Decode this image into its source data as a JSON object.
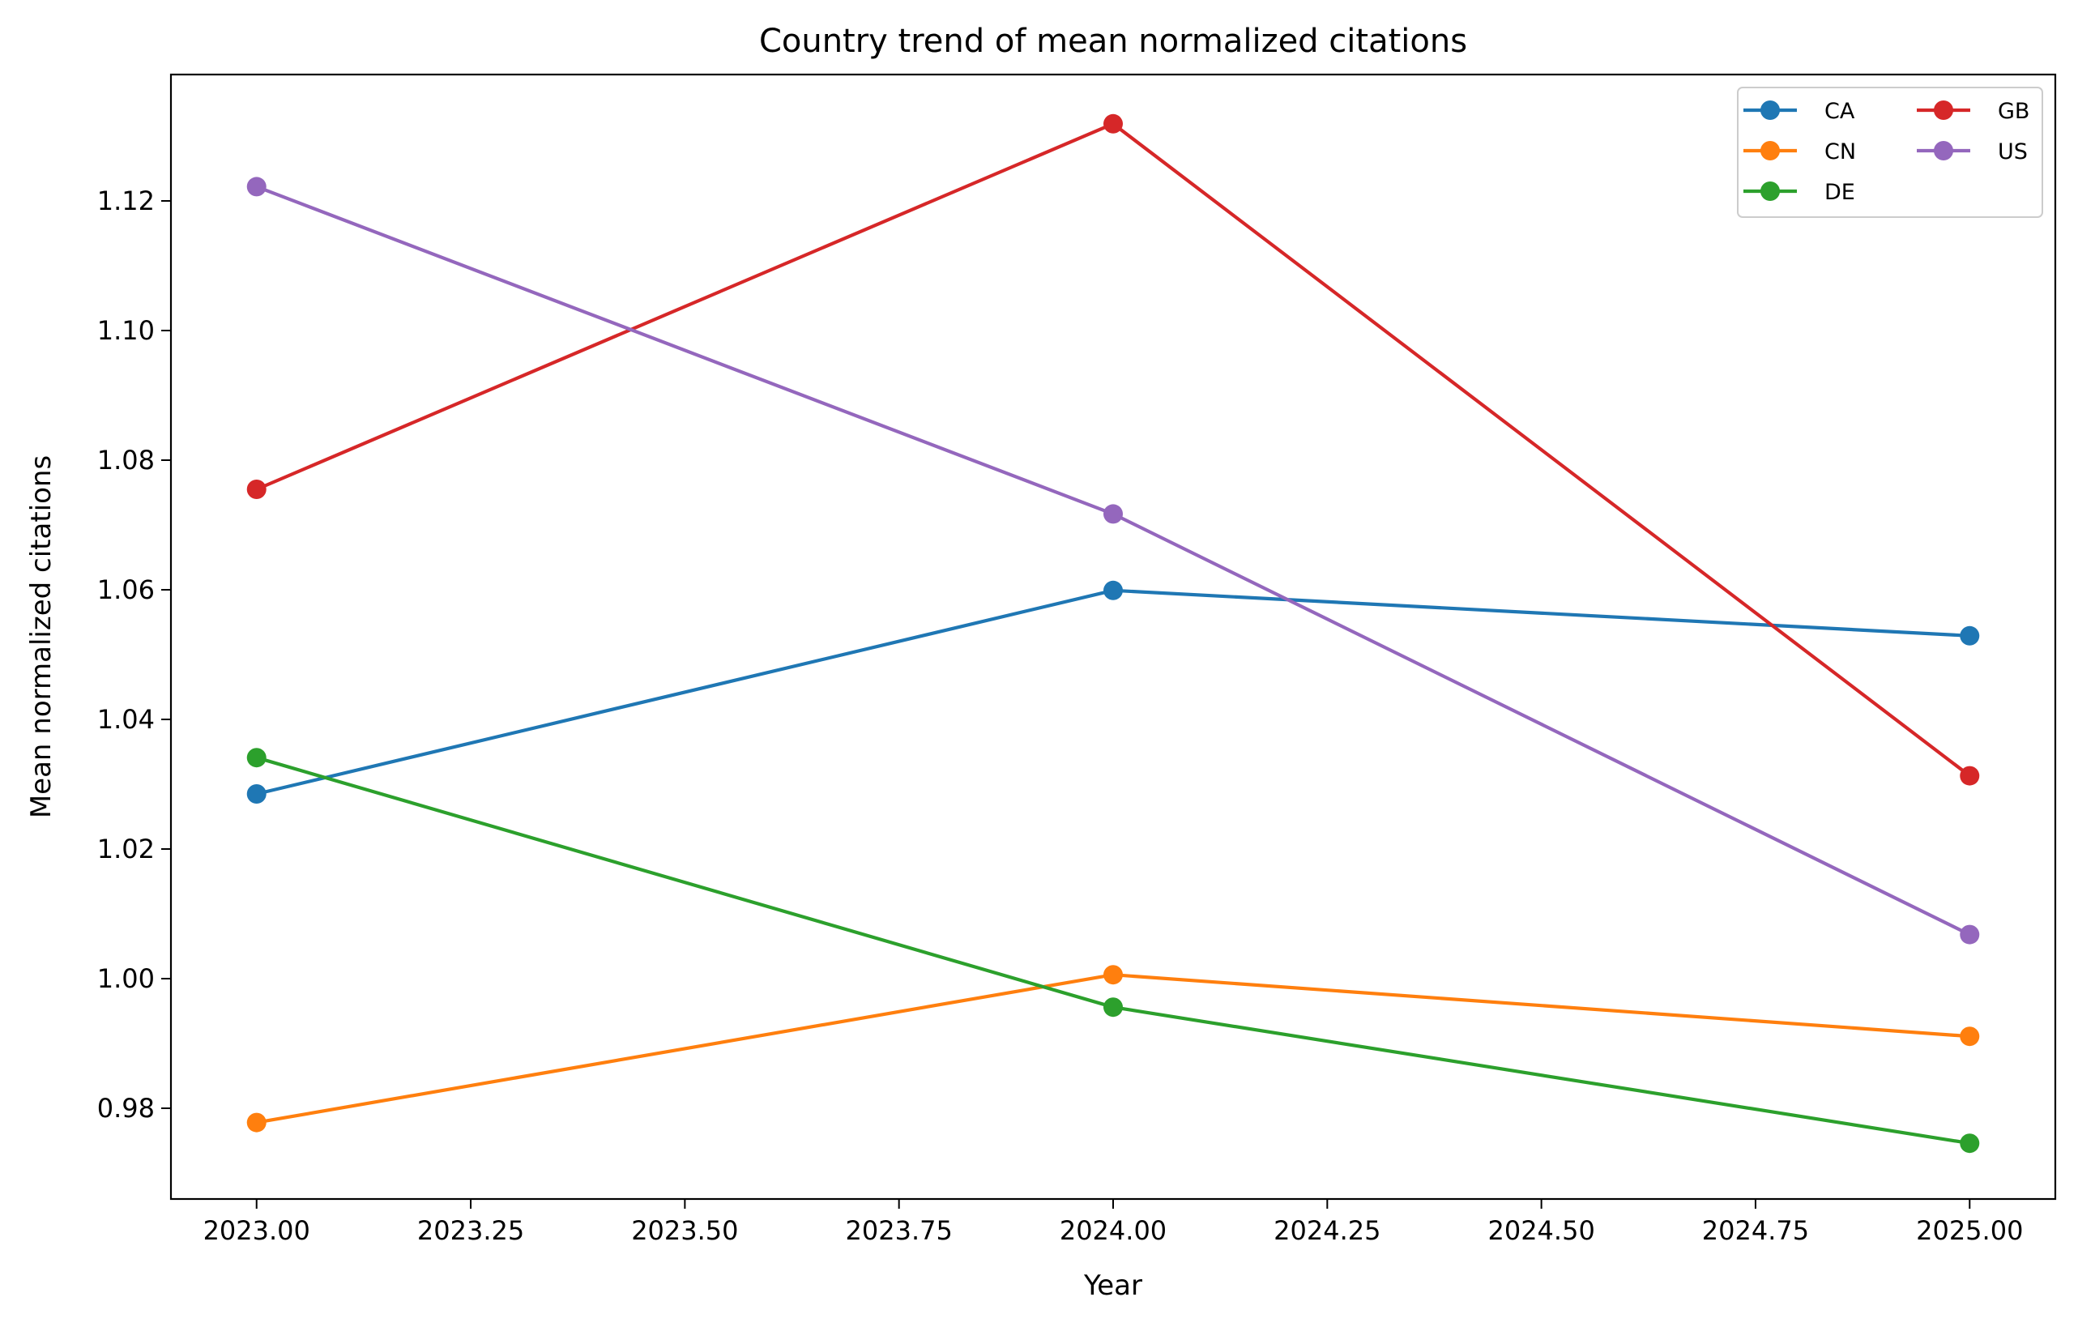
{
  "chart_data": {
    "type": "line",
    "title": "Country trend of mean normalized citations",
    "xlabel": "Year",
    "ylabel": "Mean normalized citations",
    "x": [
      2023,
      2024,
      2025
    ],
    "xlim": [
      2022.9,
      2025.1
    ],
    "ylim": [
      0.966,
      1.1395
    ],
    "xticks": [
      2023.0,
      2023.25,
      2023.5,
      2023.75,
      2024.0,
      2024.25,
      2024.5,
      2024.75,
      2025.0
    ],
    "xtick_labels": [
      "2023.00",
      "2023.25",
      "2023.50",
      "2023.75",
      "2024.00",
      "2024.25",
      "2024.50",
      "2024.75",
      "2025.00"
    ],
    "yticks": [
      0.98,
      1.0,
      1.02,
      1.04,
      1.06,
      1.08,
      1.1,
      1.12
    ],
    "ytick_labels": [
      "0.98",
      "1.00",
      "1.02",
      "1.04",
      "1.06",
      "1.08",
      "1.10",
      "1.12"
    ],
    "grid": false,
    "legend": {
      "placement": "top-right",
      "columns": 2
    },
    "series": [
      {
        "name": "CA",
        "color": "#1f77b4",
        "values": [
          1.0285,
          1.0599,
          1.0529
        ]
      },
      {
        "name": "CN",
        "color": "#ff7f0e",
        "values": [
          0.9778,
          1.0006,
          0.9911
        ]
      },
      {
        "name": "DE",
        "color": "#2ca02c",
        "values": [
          1.0341,
          0.9956,
          0.9746
        ]
      },
      {
        "name": "GB",
        "color": "#d62728",
        "values": [
          1.0755,
          1.1319,
          1.0313
        ]
      },
      {
        "name": "US",
        "color": "#9467bd",
        "values": [
          1.1222,
          1.0717,
          1.0068
        ]
      }
    ]
  }
}
